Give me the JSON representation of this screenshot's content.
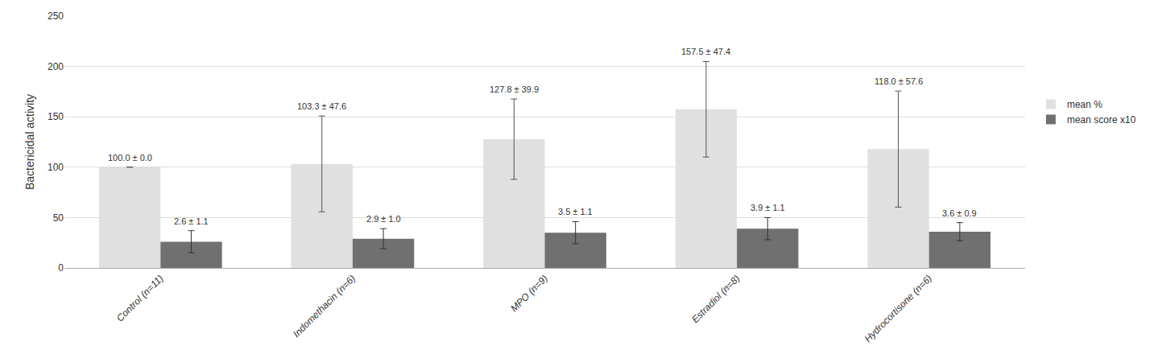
{
  "chart_data": {
    "type": "bar",
    "categories": [
      "Control (n=11)",
      "Indomethacin (n=6)",
      "MPO (n=9)",
      "Estradiol (n=8)",
      "Hydrocortisone (n=6)"
    ],
    "ylabel": "Bactericidal activity",
    "ylim": [
      0,
      250
    ],
    "yticks": [
      0,
      50,
      100,
      150,
      200,
      250
    ],
    "grid": true,
    "legend": "right",
    "series": [
      {
        "name": "mean %",
        "color": "#e0e0e0",
        "values": [
          100.0,
          103.3,
          127.8,
          157.5,
          118.0
        ],
        "errors": [
          0.0,
          47.6,
          39.9,
          47.4,
          57.6
        ],
        "annotations": [
          "100.0 ± 0.0",
          "103.3 ± 47.6",
          "127.8 ± 39.9",
          "157.5 ± 47.4",
          "118.0 ± 57.6"
        ]
      },
      {
        "name": "mean score x10",
        "color": "#707070",
        "values": [
          26.0,
          29.0,
          35.0,
          39.0,
          36.0
        ],
        "errors": [
          11.0,
          10.0,
          11.0,
          11.0,
          9.0
        ],
        "annotations": [
          "2.6 ± 1.1",
          "2.9 ± 1.0",
          "3.5 ± 1.1",
          "3.9 ± 1.1",
          "3.6 ± 0.9"
        ]
      }
    ]
  }
}
